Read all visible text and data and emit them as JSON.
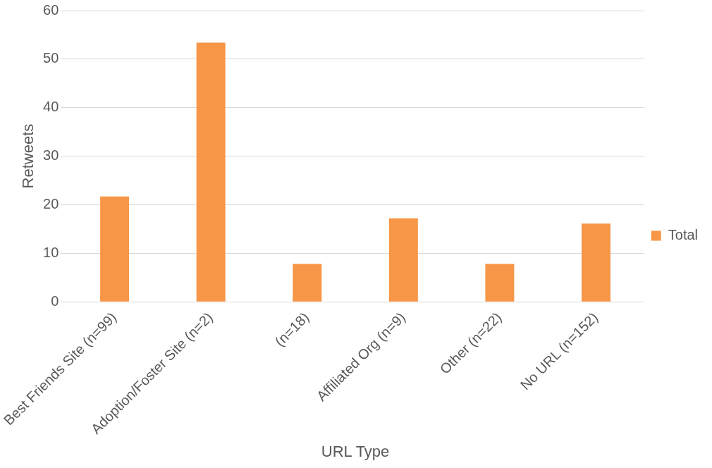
{
  "chart_data": {
    "type": "bar",
    "xlabel": "URL Type",
    "ylabel": "Retweets",
    "categories": [
      "Best Friends Site (n=99)",
      "Adoption/Foster Site (n=2)",
      "(n=18)",
      "Affiliated Org (n=9)",
      "Other (n=22)",
      "No URL (n=152)"
    ],
    "series": [
      {
        "name": "Total",
        "color": "#f79646",
        "values": [
          21.7,
          53.4,
          7.8,
          17.2,
          7.8,
          16.1
        ]
      }
    ],
    "ylim": [
      0,
      60
    ],
    "yticks": [
      0,
      10,
      20,
      30,
      40,
      50,
      60
    ],
    "grid": "y",
    "legend": "right"
  }
}
